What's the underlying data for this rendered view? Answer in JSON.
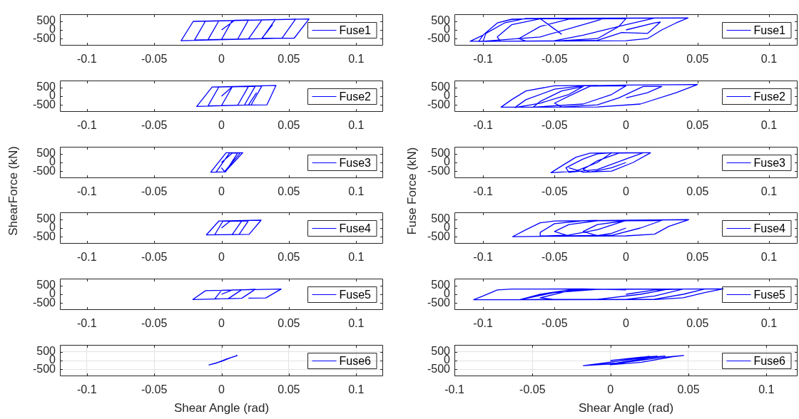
{
  "chart_data": [
    {
      "type": "line",
      "xlim": [
        -0.12,
        0.12
      ],
      "xticks": [
        -0.1,
        -0.05,
        0,
        0.05,
        0.1
      ],
      "ylim": [
        -900,
        900
      ],
      "yticks": [
        -500,
        0,
        500
      ],
      "legend": "right",
      "marker": "none",
      "grid": false,
      "series": [
        {
          "name": "Fuse1",
          "color": "#0000ff",
          "x": [
            0,
            0.01,
            0.02,
            0.012,
            0.0,
            0.008,
            0.03,
            0.02,
            -0.01,
            -0.002,
            0.04,
            0.03,
            -0.02,
            -0.012,
            0.055,
            0.045,
            -0.03,
            -0.021,
            0.065,
            0.054,
            0.03,
            0.038
          ],
          "values": [
            0,
            560,
            570,
            -530,
            -540,
            550,
            580,
            -520,
            -560,
            520,
            600,
            -500,
            -580,
            500,
            620,
            -470,
            -620,
            490,
            630,
            -470,
            -480,
            300
          ]
        }
      ]
    },
    {
      "type": "line",
      "xlim": [
        -0.12,
        0.12
      ],
      "xticks": [
        -0.1,
        -0.05,
        0,
        0.05,
        0.1
      ],
      "ylim": [
        -900,
        900
      ],
      "yticks": [
        -500,
        0,
        500
      ],
      "legend": "right",
      "marker": "none",
      "grid": false,
      "series": [
        {
          "name": "Fuse2",
          "color": "#0000ff",
          "x": [
            0,
            0.008,
            0.02,
            0.012,
            0.0,
            0.008,
            0.025,
            0.017,
            -0.01,
            -0.002,
            0.03,
            0.022,
            -0.0184,
            -0.007,
            0.0405,
            0.0337,
            0.02,
            0.026
          ],
          "values": [
            0,
            540,
            560,
            -520,
            -540,
            540,
            570,
            -510,
            -560,
            530,
            590,
            -500,
            -590,
            530,
            620,
            -500,
            -510,
            200
          ]
        }
      ]
    },
    {
      "type": "line",
      "xlim": [
        -0.12,
        0.12
      ],
      "xticks": [
        -0.1,
        -0.05,
        0,
        0.05,
        0.1
      ],
      "ylim": [
        -900,
        900
      ],
      "yticks": [
        -500,
        0,
        500
      ],
      "legend": "right",
      "marker": "none",
      "grid": false,
      "ylabel": "ShearForce (kN)",
      "series": [
        {
          "name": "Fuse3",
          "color": "#0000ff",
          "x": [
            0,
            0.008,
            0.012,
            0.003,
            -0.004,
            0.006,
            0.014,
            0.002,
            -0.008,
            0.0034,
            0.0158,
            0.0024,
            0.0
          ],
          "values": [
            0,
            540,
            550,
            -540,
            -550,
            550,
            560,
            -550,
            -560,
            560,
            560,
            -550,
            -300
          ]
        }
      ]
    },
    {
      "type": "line",
      "xlim": [
        -0.12,
        0.12
      ],
      "xticks": [
        -0.1,
        -0.05,
        0,
        0.05,
        0.1
      ],
      "ylim": [
        -900,
        900
      ],
      "yticks": [
        -500,
        0,
        500
      ],
      "legend": "right",
      "marker": "none",
      "grid": false,
      "series": [
        {
          "name": "Fuse4",
          "color": "#0000ff",
          "x": [
            0,
            0.006,
            0.015,
            0.008,
            -0.005,
            0.001,
            0.02,
            0.013,
            -0.0112,
            -0.002,
            0.0294,
            0.0205,
            0.0
          ],
          "values": [
            0,
            380,
            400,
            -370,
            -380,
            390,
            410,
            -370,
            -390,
            400,
            450,
            -360,
            -380
          ]
        }
      ]
    },
    {
      "type": "line",
      "xlim": [
        -0.12,
        0.12
      ],
      "xticks": [
        -0.1,
        -0.05,
        0,
        0.05,
        0.1
      ],
      "ylim": [
        -900,
        900
      ],
      "yticks": [
        -500,
        0,
        500
      ],
      "legend": "right",
      "marker": "none",
      "grid": false,
      "series": [
        {
          "name": "Fuse5",
          "color": "#0000ff",
          "x": [
            0,
            0.008,
            0.015,
            0.005,
            -0.005,
            0.0,
            0.025,
            0.015,
            -0.0213,
            -0.0118,
            0.0443,
            0.0329,
            0.02
          ],
          "values": [
            0,
            250,
            260,
            -250,
            -260,
            230,
            280,
            -230,
            -300,
            210,
            300,
            -210,
            -220
          ]
        }
      ]
    },
    {
      "type": "line",
      "xlim": [
        -0.12,
        0.12
      ],
      "xticks": [
        -0.1,
        -0.05,
        0,
        0.05,
        0.1
      ],
      "ylim": [
        -900,
        900
      ],
      "yticks": [
        -500,
        0,
        500
      ],
      "legend": "right",
      "marker": "none",
      "grid": true,
      "xlabel": "Shear Angle (rad)",
      "series": [
        {
          "name": "Fuse6",
          "color": "#0000ff",
          "x": [
            -0.0093,
            -0.004,
            0.004,
            0.0116,
            0.008,
            0.0,
            -0.0093,
            -0.002,
            0.006,
            0.0116
          ],
          "values": [
            -250,
            -150,
            100,
            280,
            200,
            -50,
            -250,
            -100,
            150,
            280
          ]
        }
      ]
    },
    {
      "type": "line",
      "xlim": [
        -0.12,
        0.12
      ],
      "xticks": [
        -0.1,
        -0.05,
        0,
        0.05,
        0.1
      ],
      "ylim": [
        -900,
        900
      ],
      "yticks": [
        -500,
        0,
        500
      ],
      "legend": "right",
      "marker": "none",
      "grid": false,
      "series": [
        {
          "name": "Fuse1",
          "color": "#0000ff",
          "x": [
            0,
            0.02,
            0.024,
            0.015,
            -0.003,
            -0.02,
            -0.07,
            -0.075,
            -0.06,
            -0.04,
            0.0,
            -0.005,
            -0.02,
            -0.05,
            -0.088,
            -0.09,
            -0.08,
            -0.06,
            -0.015,
            -0.03,
            -0.06,
            -0.1,
            -0.098,
            -0.085,
            -0.07,
            0.02,
            0.0,
            -0.03,
            -0.05,
            -0.103,
            -0.1,
            -0.09,
            -0.08,
            -0.06,
            0.0434,
            0.035,
            0.025,
            0.015,
            0.0,
            -0.05,
            -0.109,
            -0.1,
            -0.09,
            -0.08,
            -0.06,
            -0.045
          ],
          "values": [
            0,
            400,
            450,
            -200,
            -150,
            -600,
            -640,
            -500,
            200,
            620,
            650,
            200,
            -500,
            -640,
            -650,
            -400,
            300,
            640,
            660,
            300,
            -400,
            -650,
            -200,
            400,
            660,
            680,
            300,
            -300,
            -620,
            -660,
            -300,
            400,
            600,
            670,
            690,
            400,
            0,
            -500,
            -620,
            -640,
            -650,
            -300,
            400,
            620,
            650,
            -250
          ]
        }
      ]
    },
    {
      "type": "line",
      "xlim": [
        -0.12,
        0.12
      ],
      "xticks": [
        -0.1,
        -0.05,
        0,
        0.05,
        0.1
      ],
      "ylim": [
        -900,
        900
      ],
      "yticks": [
        -500,
        0,
        500
      ],
      "legend": "right",
      "marker": "none",
      "grid": false,
      "series": [
        {
          "name": "Fuse2",
          "color": "#0000ff",
          "x": [
            0,
            0.015,
            0.025,
            0.012,
            -0.005,
            -0.02,
            -0.045,
            -0.05,
            -0.035,
            -0.025,
            0.0,
            -0.01,
            -0.03,
            -0.065,
            -0.06,
            -0.045,
            -0.03,
            -0.04,
            -0.06,
            -0.0777,
            -0.07,
            -0.05,
            -0.03,
            0.0,
            0.05,
            0.035,
            0.01,
            -0.02,
            -0.0874,
            -0.08,
            -0.07,
            -0.05,
            -0.02
          ],
          "values": [
            -100,
            200,
            560,
            560,
            -100,
            -500,
            -620,
            -400,
            200,
            580,
            600,
            100,
            -450,
            -630,
            -300,
            300,
            560,
            100,
            -400,
            -650,
            -200,
            400,
            600,
            640,
            670,
            200,
            -450,
            -620,
            -630,
            -200,
            300,
            600,
            620
          ]
        }
      ]
    },
    {
      "type": "line",
      "xlim": [
        -0.12,
        0.12
      ],
      "xticks": [
        -0.1,
        -0.05,
        0,
        0.05,
        0.1
      ],
      "ylim": [
        -900,
        900
      ],
      "yticks": [
        -500,
        0,
        500
      ],
      "legend": "right",
      "marker": "none",
      "grid": false,
      "ylabel": "Fuse Force (kN)",
      "series": [
        {
          "name": "Fuse3",
          "color": "#0000ff",
          "x": [
            0,
            -0.01,
            -0.025,
            -0.03,
            -0.02,
            -0.005,
            0.012,
            0.0,
            -0.02,
            -0.04,
            -0.042,
            -0.03,
            -0.02,
            -0.01,
            -0.02,
            -0.035,
            -0.0525,
            -0.045,
            -0.035,
            -0.025,
            0.0,
            0.0172,
            0.005,
            -0.01,
            -0.03,
            -0.04
          ],
          "values": [
            0,
            -300,
            -560,
            -400,
            100,
            540,
            560,
            200,
            -400,
            -570,
            -300,
            200,
            500,
            560,
            0,
            -500,
            -590,
            -200,
            300,
            540,
            560,
            560,
            0,
            -500,
            -560,
            -300
          ]
        }
      ]
    },
    {
      "type": "line",
      "xlim": [
        -0.12,
        0.12
      ],
      "xticks": [
        -0.1,
        -0.05,
        0,
        0.05,
        0.1
      ],
      "ylim": [
        -900,
        900
      ],
      "yticks": [
        -500,
        0,
        500
      ],
      "legend": "right",
      "marker": "none",
      "grid": false,
      "series": [
        {
          "name": "Fuse4",
          "color": "#0000ff",
          "x": [
            0,
            -0.01,
            -0.02,
            -0.03,
            -0.02,
            0.0,
            0.025,
            0.01,
            -0.01,
            -0.04,
            -0.05,
            -0.04,
            -0.02,
            0.0,
            -0.02,
            -0.04,
            -0.06,
            -0.06,
            -0.05,
            -0.03,
            0.0438,
            0.03,
            0.02,
            0.0,
            -0.05,
            -0.0794,
            -0.07,
            -0.06,
            -0.05,
            -0.02
          ],
          "values": [
            0,
            -300,
            -440,
            -200,
            200,
            420,
            430,
            0,
            -420,
            -450,
            -200,
            200,
            420,
            430,
            -100,
            -400,
            -460,
            -250,
            250,
            420,
            480,
            100,
            -350,
            -450,
            -470,
            -500,
            -100,
            300,
            400,
            430
          ]
        }
      ]
    },
    {
      "type": "line",
      "xlim": [
        -0.12,
        0.12
      ],
      "xticks": [
        -0.1,
        -0.05,
        0,
        0.05,
        0.1
      ],
      "ylim": [
        -900,
        900
      ],
      "yticks": [
        -500,
        0,
        500
      ],
      "legend": "right",
      "marker": "none",
      "grid": false,
      "series": [
        {
          "name": "Fuse5",
          "color": "#0000ff",
          "x": [
            0,
            0.02,
            0.04,
            0.02,
            0.0,
            -0.05,
            -0.06,
            -0.04,
            -0.02,
            0.03,
            0.01,
            -0.02,
            -0.074,
            -0.06,
            -0.04,
            0.0,
            0.055,
            0.04,
            0.02,
            -0.03,
            -0.074,
            -0.05,
            -0.02,
            0.068,
            0.055,
            0.04,
            0.02,
            -0.05,
            -0.1066,
            -0.1,
            -0.09,
            -0.08,
            -0.03,
            0.0
          ],
          "values": [
            0,
            250,
            300,
            -100,
            -290,
            -300,
            -200,
            200,
            290,
            300,
            0,
            -290,
            -300,
            0,
            250,
            300,
            300,
            0,
            -280,
            -300,
            -300,
            100,
            280,
            310,
            100,
            -200,
            -300,
            -310,
            -310,
            -100,
            250,
            300,
            310,
            250
          ]
        }
      ]
    },
    {
      "type": "line",
      "xlim": [
        -0.1,
        0.12
      ],
      "xticks": [
        -0.1,
        -0.05,
        0,
        0.05,
        0.1
      ],
      "ylim": [
        -900,
        900
      ],
      "yticks": [
        -500,
        0,
        500
      ],
      "legend": "right",
      "marker": "none",
      "grid": true,
      "xlabel": "Shear Angle (rad)",
      "series": [
        {
          "name": "Fuse6",
          "color": "#0000ff",
          "x": [
            0,
            0.02,
            0.03,
            0.02,
            0.0,
            -0.0173,
            -0.005,
            0.02,
            0.035,
            0.025,
            0.005,
            0.0,
            0.02,
            0.04,
            0.0469,
            0.035,
            0.01,
            -0.0173,
            0.0,
            0.02,
            0.025
          ],
          "values": [
            0,
            200,
            250,
            100,
            -200,
            -290,
            -150,
            150,
            260,
            150,
            -180,
            -240,
            -100,
            220,
            290,
            200,
            -100,
            -290,
            -100,
            180,
            250
          ]
        }
      ]
    }
  ]
}
